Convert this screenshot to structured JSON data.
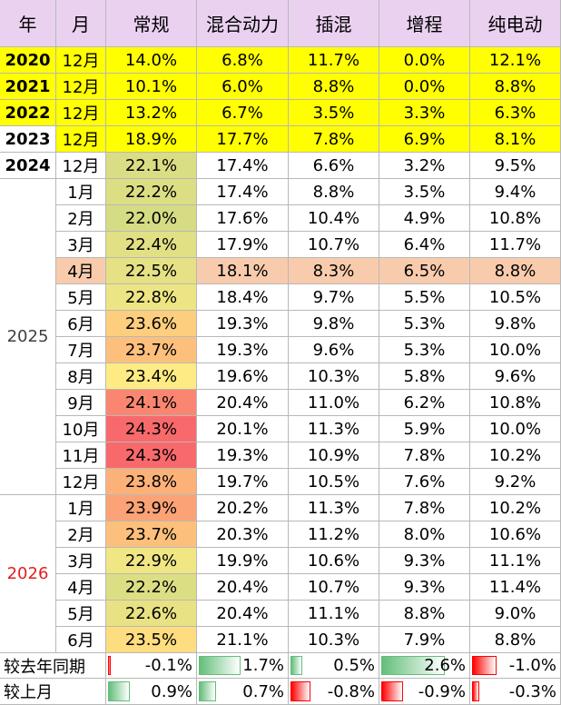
{
  "header": [
    "年",
    "月",
    "常规",
    "混合动力",
    "插混",
    "增程",
    "纯电动"
  ],
  "rows": [
    {
      "year": "2020",
      "month": "12月",
      "cells": [
        "14.0%",
        "6.8%",
        "11.7%",
        "0.0%",
        "12.1%"
      ],
      "fill": "#ffff00",
      "year_fill": "#ffff00"
    },
    {
      "year": "2021",
      "month": "12月",
      "cells": [
        "10.1%",
        "6.0%",
        "8.8%",
        "0.0%",
        "8.8%"
      ],
      "fill": "#ffff00",
      "year_fill": "#ffff00"
    },
    {
      "year": "2022",
      "month": "12月",
      "cells": [
        "13.2%",
        "6.7%",
        "3.5%",
        "3.3%",
        "6.3%"
      ],
      "fill": "#ffff00",
      "year_fill": "#ffff00"
    },
    {
      "year": "2023",
      "month": "12月",
      "cells": [
        "18.9%",
        "17.7%",
        "7.8%",
        "6.9%",
        "8.1%"
      ],
      "fill": "#ffff00"
    },
    {
      "year": "2024",
      "month": "12月",
      "cells": [
        "22.1%",
        "17.4%",
        "6.6%",
        "3.2%",
        "9.5%"
      ]
    }
  ],
  "groups": [
    {
      "year": "2025",
      "color": "#404040",
      "rows": [
        {
          "month": "1月",
          "cells": [
            "22.2%",
            "17.4%",
            "8.8%",
            "3.5%",
            "9.4%"
          ]
        },
        {
          "month": "2月",
          "cells": [
            "22.0%",
            "17.6%",
            "10.4%",
            "4.9%",
            "10.8%"
          ]
        },
        {
          "month": "3月",
          "cells": [
            "22.4%",
            "17.9%",
            "10.7%",
            "6.4%",
            "11.7%"
          ]
        },
        {
          "month": "4月",
          "cells": [
            "22.5%",
            "18.1%",
            "8.3%",
            "6.5%",
            "8.8%"
          ],
          "fill": "#f8cbad"
        },
        {
          "month": "5月",
          "cells": [
            "22.8%",
            "18.4%",
            "9.7%",
            "5.5%",
            "10.5%"
          ]
        },
        {
          "month": "6月",
          "cells": [
            "23.6%",
            "19.3%",
            "9.8%",
            "5.3%",
            "9.8%"
          ]
        },
        {
          "month": "7月",
          "cells": [
            "23.7%",
            "19.3%",
            "9.6%",
            "5.3%",
            "10.0%"
          ]
        },
        {
          "month": "8月",
          "cells": [
            "23.4%",
            "19.6%",
            "10.3%",
            "5.8%",
            "9.6%"
          ]
        },
        {
          "month": "9月",
          "cells": [
            "24.1%",
            "20.4%",
            "11.0%",
            "6.2%",
            "10.8%"
          ]
        },
        {
          "month": "10月",
          "cells": [
            "24.3%",
            "20.1%",
            "11.3%",
            "5.9%",
            "10.0%"
          ]
        },
        {
          "month": "11月",
          "cells": [
            "24.3%",
            "19.3%",
            "10.9%",
            "7.8%",
            "10.2%"
          ]
        },
        {
          "month": "12月",
          "cells": [
            "23.8%",
            "19.7%",
            "10.5%",
            "7.6%",
            "9.2%"
          ]
        }
      ]
    },
    {
      "year": "2026",
      "color": "#e02020",
      "rows": [
        {
          "month": "1月",
          "cells": [
            "23.9%",
            "20.2%",
            "11.3%",
            "7.8%",
            "10.2%"
          ]
        },
        {
          "month": "2月",
          "cells": [
            "23.7%",
            "20.3%",
            "11.2%",
            "8.0%",
            "10.6%"
          ]
        },
        {
          "month": "3月",
          "cells": [
            "22.9%",
            "19.9%",
            "10.6%",
            "9.3%",
            "11.1%"
          ]
        },
        {
          "month": "4月",
          "cells": [
            "22.2%",
            "20.4%",
            "10.7%",
            "9.3%",
            "11.4%"
          ]
        },
        {
          "month": "5月",
          "cells": [
            "22.6%",
            "20.4%",
            "11.1%",
            "8.8%",
            "9.0%"
          ]
        },
        {
          "month": "6月",
          "cells": [
            "23.5%",
            "21.1%",
            "10.3%",
            "7.9%",
            "8.8%"
          ]
        }
      ]
    }
  ],
  "comparisons": [
    {
      "label": "较去年同期",
      "cells": [
        {
          "value": -0.1,
          "label": "-0.1%"
        },
        {
          "value": 1.7,
          "label": "1.7%"
        },
        {
          "value": 0.5,
          "label": "0.5%"
        },
        {
          "value": 2.6,
          "label": "2.6%"
        },
        {
          "value": -1.0,
          "label": "-1.0%"
        }
      ]
    },
    {
      "label": "较上月",
      "cells": [
        {
          "value": 0.9,
          "label": "0.9%"
        },
        {
          "value": 0.7,
          "label": "0.7%"
        },
        {
          "value": -0.8,
          "label": "-0.8%"
        },
        {
          "value": -0.9,
          "label": "-0.9%"
        },
        {
          "value": -0.3,
          "label": "-0.3%"
        }
      ]
    }
  ]
}
